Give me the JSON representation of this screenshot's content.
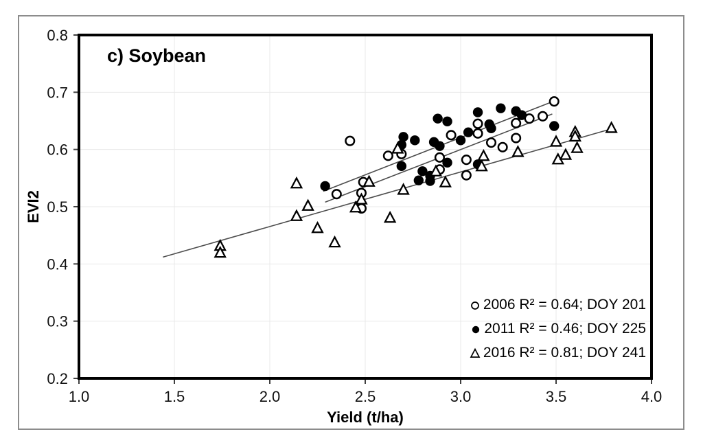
{
  "figure": {
    "background": "#ffffff",
    "border_color": "#8c8c8c"
  },
  "chart_data": {
    "type": "scatter",
    "title": "c) Soybean",
    "xlabel": "Yield (t/ha)",
    "ylabel": "EVI2",
    "xlim": [
      1.0,
      4.0
    ],
    "ylim": [
      0.2,
      0.8
    ],
    "x_ticks": [
      "1.0",
      "1.5",
      "2.0",
      "2.5",
      "3.0",
      "3.5",
      "4.0"
    ],
    "y_ticks": [
      "0.8",
      "0.7",
      "0.6",
      "0.5",
      "0.4",
      "0.3",
      "0.2"
    ],
    "grid": true,
    "legend_position": "lower-right",
    "colors": {
      "marker": "#000000",
      "trendline": "#4d4d4d",
      "gridline": "#e8e8e8",
      "frame": "#000000",
      "tick": "#404040"
    },
    "series": [
      {
        "name": "2006",
        "marker": "open-circle",
        "legend": "2006 R² = 0.64; DOY 201",
        "r2": 0.64,
        "doy": 201,
        "points": [
          [
            2.42,
            0.615
          ],
          [
            2.35,
            0.522
          ],
          [
            2.49,
            0.543
          ],
          [
            2.48,
            0.524
          ],
          [
            2.48,
            0.497
          ],
          [
            2.62,
            0.589
          ],
          [
            2.69,
            0.592
          ],
          [
            2.89,
            0.586
          ],
          [
            2.89,
            0.565
          ],
          [
            2.95,
            0.625
          ],
          [
            3.03,
            0.582
          ],
          [
            3.03,
            0.555
          ],
          [
            3.09,
            0.645
          ],
          [
            3.09,
            0.628
          ],
          [
            3.16,
            0.612
          ],
          [
            3.22,
            0.604
          ],
          [
            3.29,
            0.646
          ],
          [
            3.29,
            0.62
          ],
          [
            3.36,
            0.654
          ],
          [
            3.43,
            0.658
          ],
          [
            3.49,
            0.684
          ]
        ],
        "trendline": {
          "x1": 2.28,
          "y1": 0.527,
          "x2": 3.5,
          "y2": 0.686
        }
      },
      {
        "name": "2011",
        "marker": "filled-circle",
        "legend": "2011 R² = 0.46; DOY 225",
        "r2": 0.46,
        "doy": 225,
        "points": [
          [
            2.29,
            0.536
          ],
          [
            2.69,
            0.608
          ],
          [
            2.7,
            0.622
          ],
          [
            2.76,
            0.616
          ],
          [
            2.69,
            0.571
          ],
          [
            2.78,
            0.546
          ],
          [
            2.8,
            0.562
          ],
          [
            2.84,
            0.554
          ],
          [
            2.84,
            0.545
          ],
          [
            2.86,
            0.613
          ],
          [
            2.89,
            0.606
          ],
          [
            2.88,
            0.654
          ],
          [
            2.93,
            0.649
          ],
          [
            2.93,
            0.577
          ],
          [
            3.0,
            0.616
          ],
          [
            3.04,
            0.63
          ],
          [
            3.09,
            0.665
          ],
          [
            3.09,
            0.574
          ],
          [
            3.15,
            0.644
          ],
          [
            3.16,
            0.637
          ],
          [
            3.21,
            0.672
          ],
          [
            3.29,
            0.667
          ],
          [
            3.32,
            0.66
          ],
          [
            3.49,
            0.641
          ]
        ],
        "trendline": {
          "x1": 2.29,
          "y1": 0.508,
          "x2": 3.48,
          "y2": 0.662
        }
      },
      {
        "name": "2016",
        "marker": "open-triangle",
        "legend": "2016 R² = 0.81; DOY 241",
        "r2": 0.81,
        "doy": 241,
        "points": [
          [
            1.74,
            0.431
          ],
          [
            1.74,
            0.419
          ],
          [
            2.14,
            0.54
          ],
          [
            2.14,
            0.483
          ],
          [
            2.2,
            0.501
          ],
          [
            2.25,
            0.462
          ],
          [
            2.34,
            0.437
          ],
          [
            2.45,
            0.498
          ],
          [
            2.48,
            0.512
          ],
          [
            2.52,
            0.543
          ],
          [
            2.63,
            0.48
          ],
          [
            2.67,
            0.601
          ],
          [
            2.7,
            0.529
          ],
          [
            2.87,
            0.561
          ],
          [
            2.92,
            0.542
          ],
          [
            3.11,
            0.57
          ],
          [
            3.12,
            0.588
          ],
          [
            3.3,
            0.595
          ],
          [
            3.5,
            0.613
          ],
          [
            3.51,
            0.582
          ],
          [
            3.55,
            0.59
          ],
          [
            3.6,
            0.63
          ],
          [
            3.6,
            0.622
          ],
          [
            3.61,
            0.602
          ],
          [
            3.79,
            0.637
          ]
        ],
        "trendline": {
          "x1": 1.44,
          "y1": 0.412,
          "x2": 3.79,
          "y2": 0.636
        }
      }
    ]
  }
}
